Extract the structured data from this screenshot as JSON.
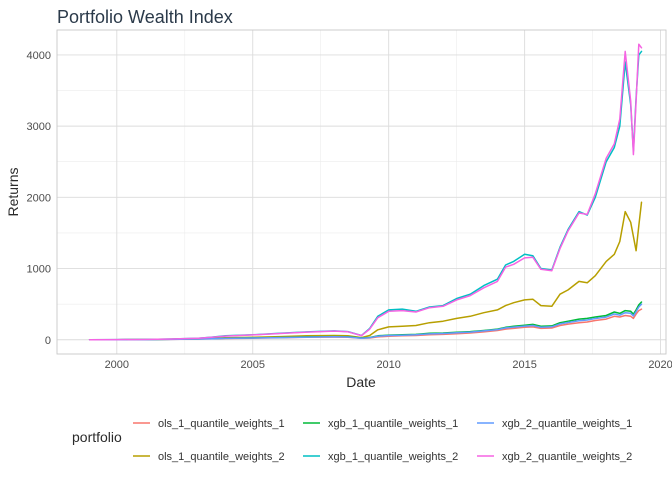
{
  "chart_data": {
    "type": "line",
    "title": "Portfolio Wealth Index",
    "xlabel": "Date",
    "ylabel": "Returns",
    "xlim": [
      1997.8,
      2020.2
    ],
    "ylim": [
      -200,
      4350
    ],
    "xticks": [
      "2000",
      "2005",
      "2010",
      "2015",
      "2020"
    ],
    "yticks": [
      "0",
      "1000",
      "2000",
      "3000",
      "4000"
    ],
    "grid": true,
    "legend": {
      "title": "portfolio",
      "position": "bottom",
      "columns": 3
    },
    "x": [
      1999.0,
      2000.0,
      2001.0,
      2002.0,
      2003.0,
      2003.5,
      2004.0,
      2005.0,
      2006.0,
      2007.0,
      2008.0,
      2008.5,
      2009.0,
      2009.3,
      2009.6,
      2010.0,
      2010.5,
      2011.0,
      2011.5,
      2012.0,
      2012.5,
      2013.0,
      2013.5,
      2014.0,
      2014.3,
      2014.6,
      2015.0,
      2015.3,
      2015.6,
      2016.0,
      2016.3,
      2016.6,
      2017.0,
      2017.3,
      2017.6,
      2018.0,
      2018.3,
      2018.5,
      2018.7,
      2018.9,
      2019.0,
      2019.1,
      2019.2,
      2019.3
    ],
    "series": [
      {
        "name": "ols_1_quantile_weights_1",
        "color": "#F8766D",
        "values": [
          0,
          1,
          2,
          5,
          10,
          14,
          18,
          22,
          28,
          34,
          38,
          36,
          20,
          25,
          40,
          50,
          55,
          60,
          70,
          75,
          85,
          95,
          110,
          130,
          150,
          160,
          175,
          180,
          160,
          165,
          200,
          220,
          240,
          250,
          270,
          290,
          330,
          320,
          340,
          330,
          300,
          360,
          410,
          430
        ]
      },
      {
        "name": "ols_1_quantile_weights_2",
        "color": "#B79F00",
        "values": [
          0,
          1,
          3,
          6,
          12,
          20,
          28,
          35,
          45,
          55,
          60,
          55,
          30,
          60,
          140,
          180,
          190,
          200,
          240,
          260,
          300,
          330,
          380,
          420,
          480,
          520,
          560,
          570,
          480,
          470,
          640,
          700,
          820,
          800,
          900,
          1100,
          1200,
          1380,
          1800,
          1650,
          1450,
          1250,
          1600,
          1930
        ]
      },
      {
        "name": "xgb_1_quantile_weights_1",
        "color": "#00BA38",
        "values": [
          0,
          1,
          2,
          6,
          12,
          16,
          20,
          26,
          32,
          40,
          44,
          42,
          25,
          32,
          55,
          65,
          70,
          75,
          90,
          95,
          105,
          115,
          130,
          150,
          175,
          190,
          205,
          215,
          190,
          195,
          240,
          260,
          290,
          300,
          320,
          340,
          390,
          370,
          410,
          400,
          360,
          420,
          490,
          530
        ]
      },
      {
        "name": "xgb_1_quantile_weights_2",
        "color": "#00BFC4",
        "values": [
          0,
          2,
          4,
          10,
          22,
          38,
          55,
          70,
          90,
          110,
          125,
          115,
          60,
          160,
          330,
          420,
          430,
          400,
          460,
          480,
          580,
          640,
          760,
          850,
          1050,
          1100,
          1200,
          1180,
          1000,
          980,
          1300,
          1550,
          1800,
          1750,
          2000,
          2500,
          2700,
          3000,
          3900,
          3300,
          2650,
          3400,
          4000,
          4050
        ]
      },
      {
        "name": "xgb_2_quantile_weights_1",
        "color": "#619CFF",
        "values": [
          0,
          1,
          2,
          5,
          11,
          15,
          19,
          24,
          30,
          37,
          41,
          39,
          22,
          29,
          50,
          60,
          64,
          70,
          82,
          88,
          98,
          108,
          124,
          142,
          166,
          178,
          192,
          200,
          176,
          182,
          222,
          242,
          268,
          278,
          298,
          318,
          362,
          345,
          380,
          372,
          335,
          395,
          460,
          500
        ]
      },
      {
        "name": "xgb_2_quantile_weights_2",
        "color": "#F564E3",
        "values": [
          0,
          2,
          4,
          10,
          22,
          36,
          52,
          68,
          88,
          108,
          122,
          112,
          58,
          150,
          310,
          400,
          410,
          390,
          450,
          470,
          560,
          620,
          730,
          820,
          1020,
          1060,
          1150,
          1160,
          990,
          970,
          1280,
          1530,
          1780,
          1760,
          2050,
          2550,
          2750,
          3100,
          4050,
          3350,
          2600,
          3350,
          4150,
          4100
        ]
      }
    ]
  }
}
